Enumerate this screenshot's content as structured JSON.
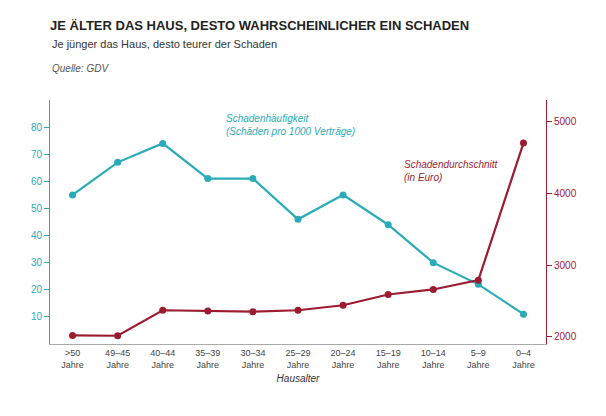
{
  "chart_data": {
    "type": "line",
    "title": "JE ÄLTER DAS HAUS, DESTO WAHRSCHEINLICHER EIN SCHADEN",
    "subtitle": "Je jünger das Haus, desto teurer der Schaden",
    "source": "Quelle: GDV",
    "xlabel": "Hausalter",
    "categories": [
      ">50\nJahre",
      "49–45\nJahre",
      "40–44\nJahre",
      "35–39\nJahre",
      "30–34\nJahre",
      "25–29\nJahre",
      "20–24\nJahre",
      "15–19\nJahre",
      "10–14\nJahre",
      "5–9\nJahre",
      "0–4\nJahre"
    ],
    "series": [
      {
        "color": "#2AABB8",
        "marker": "circle",
        "values": [
          55,
          67,
          74,
          61,
          61,
          46,
          55,
          44,
          30,
          22,
          11
        ]
      },
      {
        "color": "#9B1B30",
        "marker": "circle",
        "axis": "y2",
        "values": [
          2020,
          2015,
          2370,
          2360,
          2350,
          2370,
          2440,
          2590,
          2660,
          2790,
          4700
        ]
      }
    ],
    "annotations": [
      "Schadenhäufigkeit\n(Schäden pro 1000 Verträge)",
      "Schadendurchschnitt\n(in Euro)"
    ],
    "ylim": [
      0,
      90
    ],
    "yticks": [
      10,
      20,
      30,
      40,
      50,
      60,
      70,
      80
    ],
    "y2lim": [
      1900,
      5300
    ],
    "y2ticks": [
      2000,
      3000,
      4000,
      5000
    ],
    "grid": false
  }
}
